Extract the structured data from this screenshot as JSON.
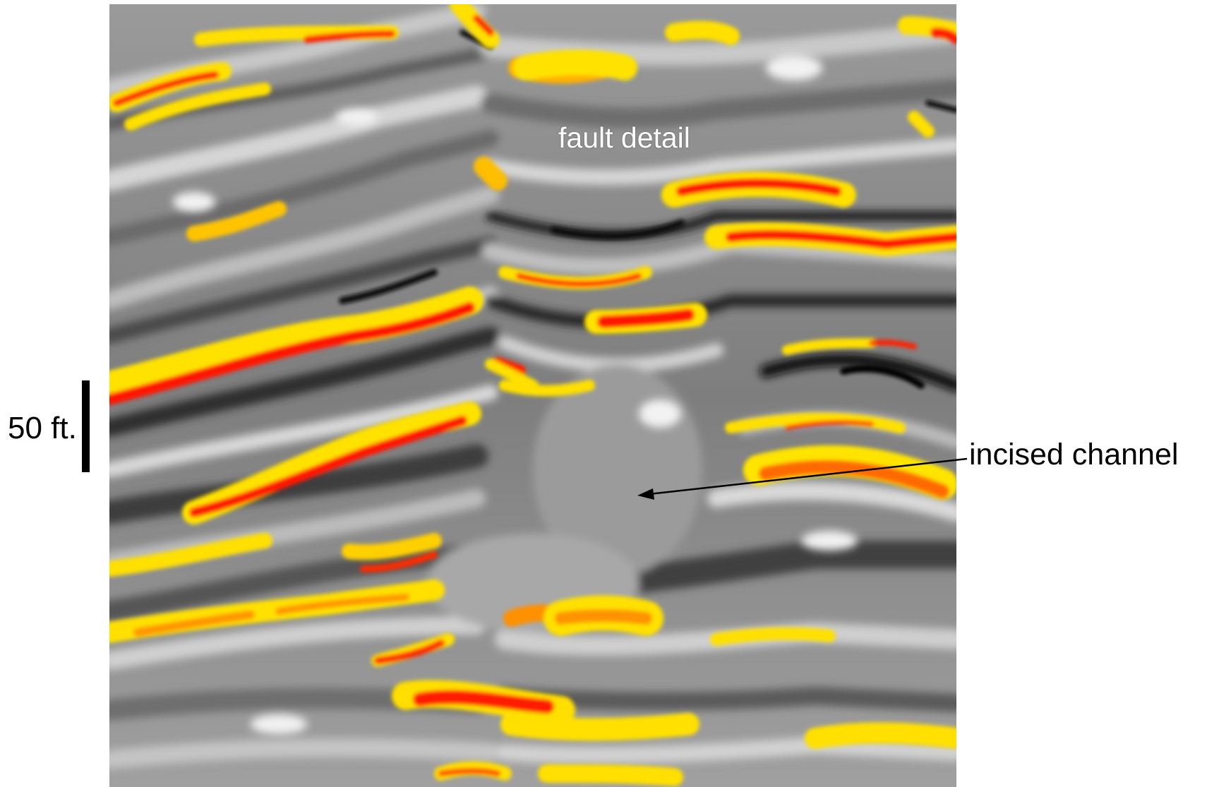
{
  "annotations": {
    "fault_label": "fault detail",
    "scale_label": "50 ft.",
    "channel_label": "incised channel"
  },
  "colors": {
    "background": "#ffffff",
    "seismic_gray": "#8c8c8c",
    "amplitude_red": "#ff1a00",
    "amplitude_orange": "#ff9a00",
    "amplitude_yellow": "#ffee00",
    "trough_black": "#0a0a0a"
  }
}
